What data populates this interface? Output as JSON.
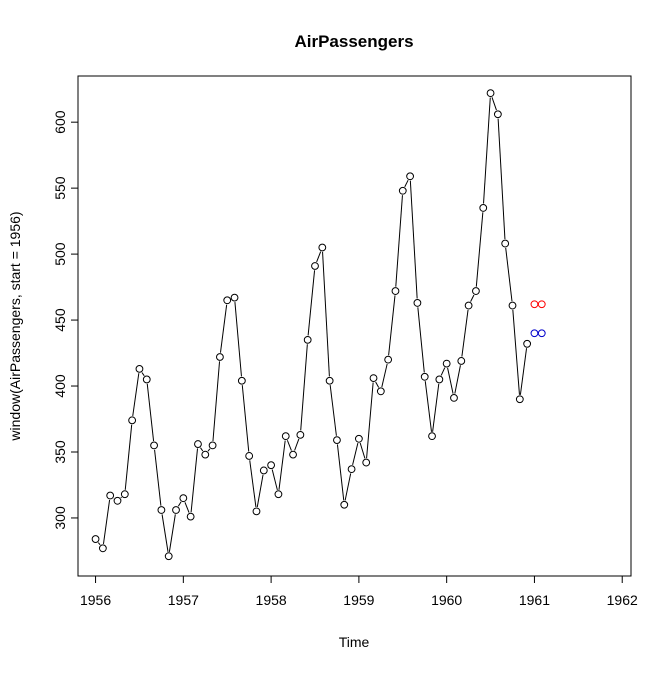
{
  "chart_data": {
    "type": "line",
    "title": "AirPassengers",
    "xlabel": "Time",
    "ylabel": "window(AirPassengers, start = 1956)",
    "xlim": [
      1955.8,
      1962.1
    ],
    "ylim": [
      256,
      635
    ],
    "x_ticks": [
      1956,
      1957,
      1958,
      1959,
      1960,
      1961,
      1962
    ],
    "x_tick_labels": [
      "1956",
      "1957",
      "1958",
      "1959",
      "1960",
      "1961",
      "1962"
    ],
    "y_ticks": [
      300,
      350,
      400,
      450,
      500,
      550,
      600
    ],
    "y_tick_labels": [
      "300",
      "350",
      "400",
      "450",
      "500",
      "550",
      "600"
    ],
    "grid": false,
    "legend": "none",
    "series": [
      {
        "color": "#000000",
        "style": "line-with-open-circles",
        "x_start": 1956,
        "x_step": 0.0833333333,
        "values": [
          284,
          277,
          317,
          313,
          318,
          374,
          413,
          405,
          355,
          306,
          271,
          306,
          315,
          301,
          356,
          348,
          355,
          422,
          465,
          467,
          404,
          347,
          305,
          336,
          340,
          318,
          362,
          348,
          363,
          435,
          491,
          505,
          404,
          359,
          310,
          337,
          360,
          342,
          406,
          396,
          420,
          472,
          548,
          559,
          463,
          407,
          362,
          405,
          417,
          391,
          419,
          461,
          472,
          535,
          622,
          606,
          508,
          461,
          390,
          432
        ]
      },
      {
        "color": "#ff0000",
        "style": "line-with-open-circles",
        "x_start": 1961,
        "x_step": 0.0833333333,
        "values": [
          462,
          462
        ]
      },
      {
        "color": "#0000cc",
        "style": "line-with-open-circles",
        "x_start": 1961,
        "x_step": 0.0833333333,
        "values": [
          440,
          440
        ]
      }
    ]
  }
}
